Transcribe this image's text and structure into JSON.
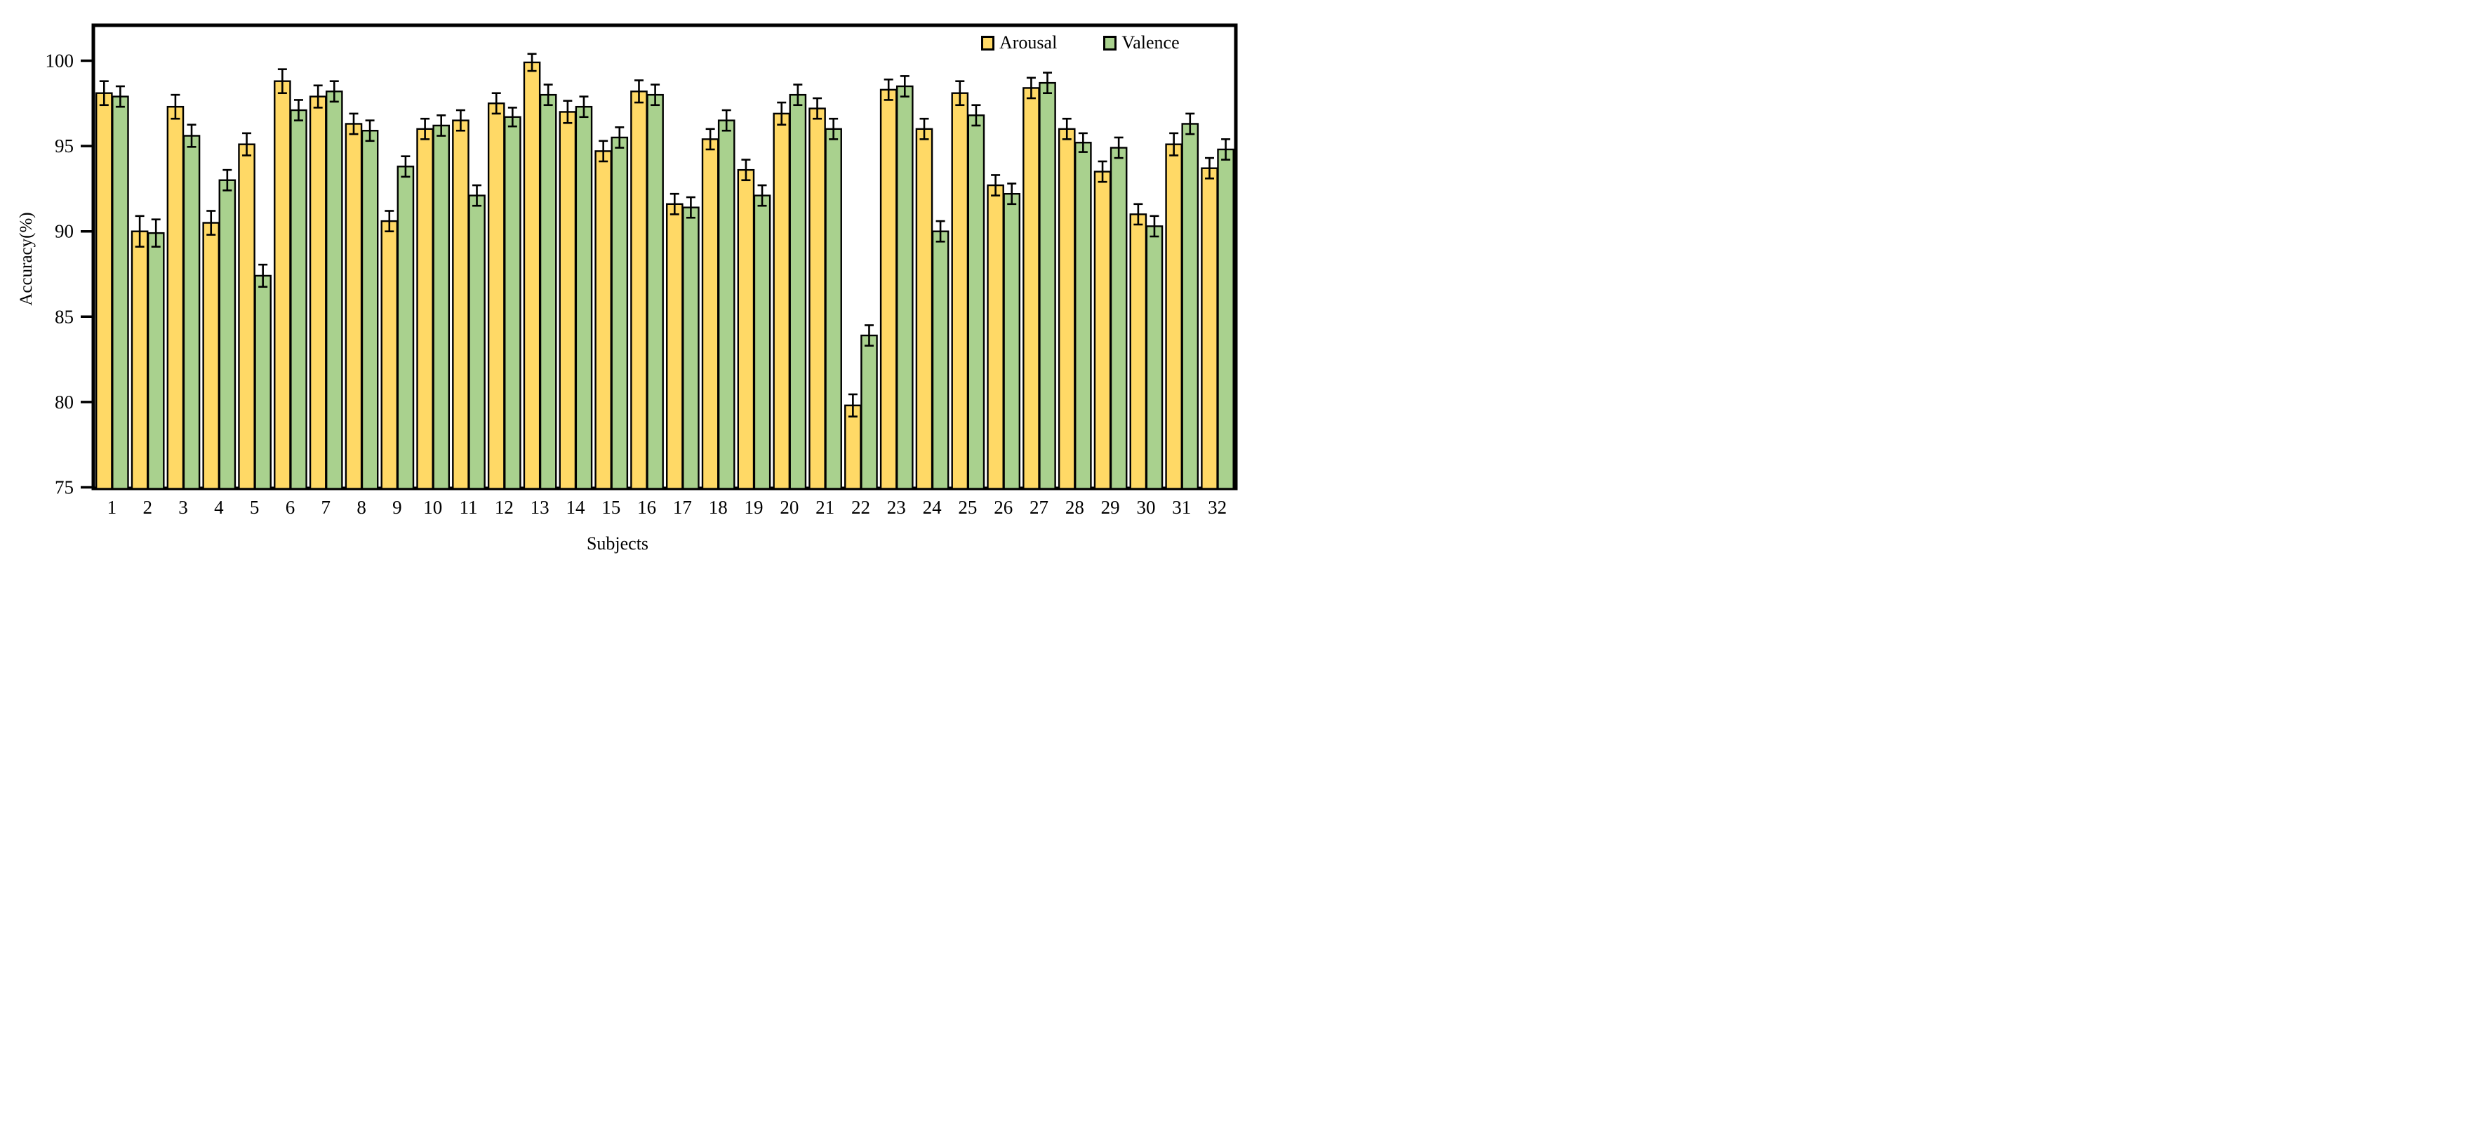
{
  "chart_data": {
    "type": "bar",
    "title": "",
    "xlabel": "Subjects",
    "ylabel": "Accuracy(%)",
    "categories": [
      "1",
      "2",
      "3",
      "4",
      "5",
      "6",
      "7",
      "8",
      "9",
      "10",
      "11",
      "12",
      "13",
      "14",
      "15",
      "16",
      "17",
      "18",
      "19",
      "20",
      "21",
      "22",
      "23",
      "24",
      "25",
      "26",
      "27",
      "28",
      "29",
      "30",
      "31",
      "32"
    ],
    "series": [
      {
        "name": "Arousal",
        "color": "#FFD966",
        "values": [
          98.1,
          90.0,
          97.3,
          90.5,
          95.1,
          98.8,
          97.9,
          96.3,
          90.6,
          96.0,
          96.5,
          97.5,
          99.9,
          97.0,
          94.7,
          98.2,
          91.6,
          95.4,
          93.6,
          96.9,
          97.2,
          79.8,
          98.3,
          96.0,
          98.1,
          92.7,
          98.4,
          96.0,
          93.5,
          91.0,
          95.1,
          93.7
        ],
        "errors": [
          0.7,
          0.9,
          0.7,
          0.7,
          0.65,
          0.7,
          0.65,
          0.6,
          0.6,
          0.6,
          0.6,
          0.6,
          0.5,
          0.65,
          0.6,
          0.65,
          0.6,
          0.6,
          0.6,
          0.65,
          0.6,
          0.65,
          0.6,
          0.6,
          0.7,
          0.6,
          0.6,
          0.6,
          0.6,
          0.6,
          0.65,
          0.6
        ]
      },
      {
        "name": "Valence",
        "color": "#A9D18E",
        "values": [
          97.9,
          89.9,
          95.6,
          93.0,
          87.4,
          97.1,
          98.2,
          95.9,
          93.8,
          96.2,
          92.1,
          96.7,
          98.0,
          97.3,
          95.5,
          98.0,
          91.4,
          96.5,
          92.1,
          98.0,
          96.0,
          83.9,
          98.5,
          90.0,
          96.8,
          92.2,
          98.7,
          95.2,
          94.9,
          90.3,
          96.3,
          94.8
        ],
        "errors": [
          0.6,
          0.8,
          0.65,
          0.6,
          0.65,
          0.6,
          0.6,
          0.6,
          0.6,
          0.6,
          0.6,
          0.55,
          0.6,
          0.6,
          0.6,
          0.6,
          0.6,
          0.6,
          0.6,
          0.6,
          0.6,
          0.6,
          0.6,
          0.6,
          0.6,
          0.6,
          0.6,
          0.55,
          0.6,
          0.6,
          0.6,
          0.6
        ]
      }
    ],
    "ylim": [
      75,
      102.1
    ],
    "yticks": [
      75,
      80,
      85,
      90,
      95,
      100
    ],
    "grid": false,
    "legend_position": "top-right-inside",
    "axis_color": "#000000",
    "error_bar_color": "#000000"
  }
}
